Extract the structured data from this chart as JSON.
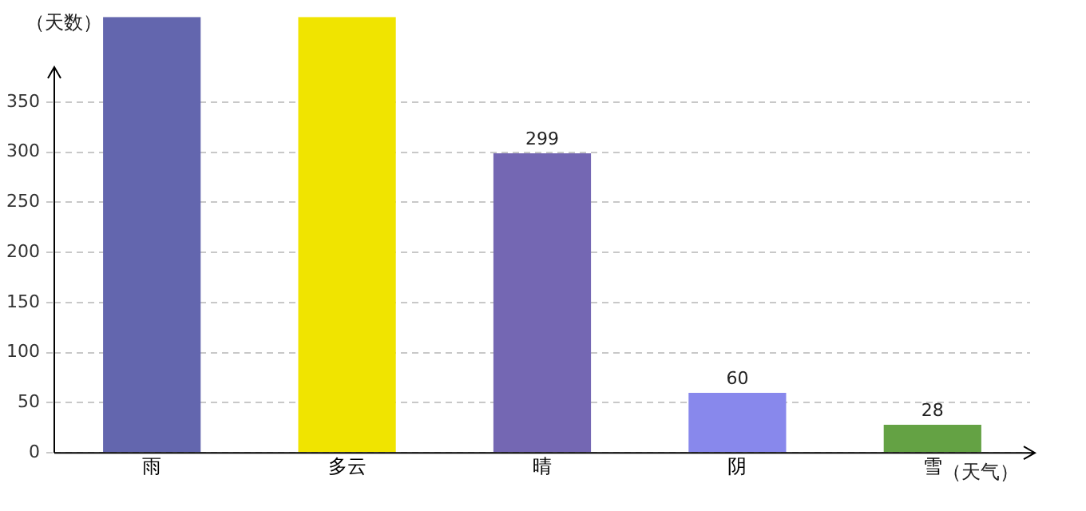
{
  "chart_data": {
    "type": "bar",
    "xlabel": "（天气）",
    "ylabel": "（天数）",
    "categories": [
      "雨",
      "多云",
      "晴",
      "阴",
      "雪"
    ],
    "values": [
      435,
      435,
      299,
      60,
      28
    ],
    "value_labels": [
      null,
      null,
      "299",
      "60",
      "28"
    ],
    "colors": [
      "#6366ae",
      "#f0e400",
      "#7467b3",
      "#8888ec",
      "#64a244"
    ],
    "ylim": [
      0,
      435
    ],
    "yticks": [
      0,
      50,
      100,
      150,
      200,
      250,
      300,
      350
    ],
    "grid": "y",
    "legend": false
  }
}
